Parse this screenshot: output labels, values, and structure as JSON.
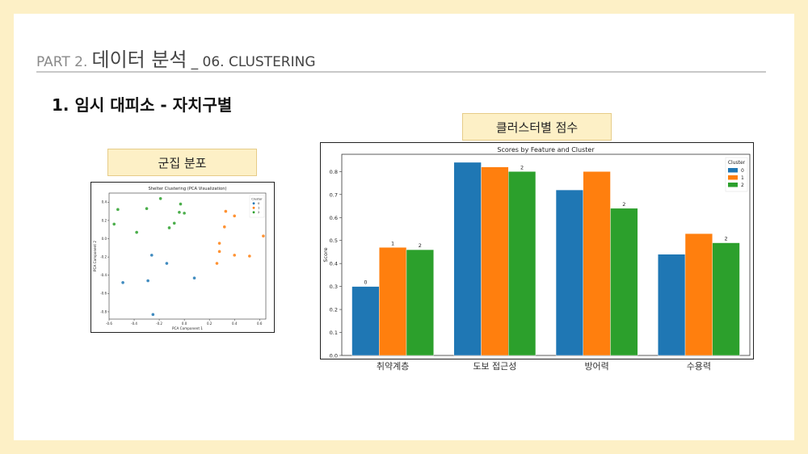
{
  "header": {
    "part": "PART 2.",
    "title_main": "데이터 분석",
    "title_sub": "_ 06. CLUSTERING"
  },
  "section_title": "1. 임시 대피소 - 자치구별",
  "labels": {
    "scatter": "군집 분포",
    "bar": "클러스터별 점수"
  },
  "colors": {
    "page_bg": "#fdf0c6",
    "cluster0": "#1f77b4",
    "cluster1": "#ff7f0e",
    "cluster2": "#2ca02c"
  },
  "chart_data": [
    {
      "type": "scatter",
      "title": "Shelter Clustering (PCA Visualization)",
      "xlabel": "PCA Component 1",
      "ylabel": "PCA Component 2",
      "xlim": [
        -0.6,
        0.65
      ],
      "ylim": [
        -0.88,
        0.5
      ],
      "xticks": [
        -0.6,
        -0.4,
        -0.2,
        0.0,
        0.2,
        0.4,
        0.6
      ],
      "yticks": [
        -0.8,
        -0.6,
        -0.4,
        -0.2,
        0.0,
        0.2,
        0.4
      ],
      "legend": {
        "title": "Cluster",
        "placement": "top-right"
      },
      "series": [
        {
          "name": "0",
          "points": [
            [
              -0.25,
              -0.83
            ],
            [
              -0.49,
              -0.48
            ],
            [
              -0.29,
              -0.46
            ],
            [
              -0.26,
              -0.18
            ],
            [
              -0.14,
              -0.27
            ],
            [
              0.08,
              -0.43
            ]
          ]
        },
        {
          "name": "1",
          "points": [
            [
              0.33,
              0.3
            ],
            [
              0.4,
              0.25
            ],
            [
              0.32,
              0.13
            ],
            [
              0.28,
              -0.05
            ],
            [
              0.28,
              -0.14
            ],
            [
              0.26,
              -0.27
            ],
            [
              0.4,
              -0.18
            ],
            [
              0.52,
              -0.19
            ],
            [
              0.63,
              0.03
            ]
          ]
        },
        {
          "name": "2",
          "points": [
            [
              -0.19,
              0.44
            ],
            [
              -0.03,
              0.38
            ],
            [
              -0.3,
              0.33
            ],
            [
              -0.53,
              0.32
            ],
            [
              -0.04,
              0.29
            ],
            [
              0.0,
              0.28
            ],
            [
              -0.08,
              0.17
            ],
            [
              -0.12,
              0.12
            ],
            [
              -0.56,
              0.16
            ],
            [
              -0.38,
              0.07
            ]
          ]
        }
      ]
    },
    {
      "type": "bar",
      "title": "Scores by Feature and Cluster",
      "xlabel": "",
      "ylabel": "Score",
      "ylim": [
        0,
        0.875
      ],
      "yticks": [
        0.0,
        0.1,
        0.2,
        0.3,
        0.4,
        0.5,
        0.6,
        0.7,
        0.8
      ],
      "categories": [
        "취약계층",
        "도보 접근성",
        "방어력",
        "수용력"
      ],
      "legend": {
        "title": "Cluster",
        "placement": "top-right"
      },
      "series": [
        {
          "name": "0",
          "values": [
            0.3,
            0.84,
            0.72,
            0.44
          ]
        },
        {
          "name": "1",
          "values": [
            0.47,
            0.82,
            0.8,
            0.53
          ]
        },
        {
          "name": "2",
          "values": [
            0.46,
            0.8,
            0.64,
            0.49
          ]
        }
      ],
      "annotations": [
        {
          "series": 0,
          "category": 0,
          "text": "0"
        },
        {
          "series": 1,
          "category": 0,
          "text": "1"
        },
        {
          "series": 2,
          "category": 0,
          "text": "2"
        },
        {
          "series": 2,
          "category": 1,
          "text": "2"
        },
        {
          "series": 2,
          "category": 2,
          "text": "2"
        },
        {
          "series": 2,
          "category": 3,
          "text": "2"
        }
      ]
    }
  ]
}
